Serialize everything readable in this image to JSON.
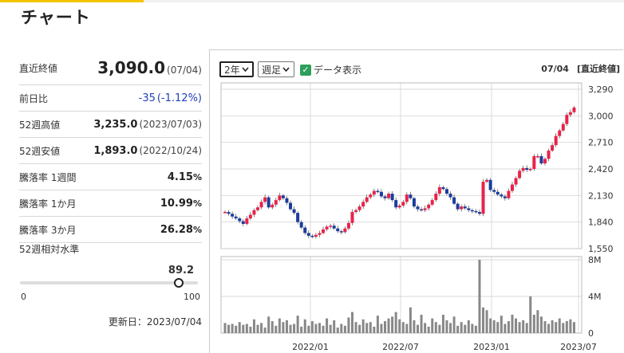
{
  "page": {
    "title": "チャート"
  },
  "summary": {
    "close_label": "直近終値",
    "close_value": "3,090.0",
    "close_date": "(07/04)",
    "prev_label": "前日比",
    "prev_value": "-35",
    "prev_pct": "(-1.12%)",
    "high52_label": "52週高値",
    "high52_value": "3,235.0",
    "high52_date": "(2023/07/03)",
    "low52_label": "52週安値",
    "low52_value": "1,893.0",
    "low52_date": "(2022/10/24)",
    "w1_label": "騰落率 1週間",
    "w1_value": "4.15",
    "m1_label": "騰落率 1か月",
    "m1_value": "10.99",
    "m3_label": "騰落率 3か月",
    "m3_value": "26.28",
    "pct_unit": "%"
  },
  "relative": {
    "label": "52週相対水準",
    "value": "89.2",
    "level": 0.892,
    "min": "0",
    "max": "100"
  },
  "updated": "更新日：2023/07/04",
  "controls": {
    "period_selected": "2年",
    "interval_selected": "週足",
    "data_display_label": "データ表示",
    "data_display_checked": true,
    "chevron": "chevron-down-icon",
    "check": "check-icon"
  },
  "chart_header": {
    "date": "07/04",
    "label": "[直近終値]"
  },
  "chart_data": {
    "type": "candlestick",
    "price_ticks": [
      "3,290",
      "3,000",
      "2,710",
      "2,420",
      "2,130",
      "1,840",
      "1,550"
    ],
    "price_tick_values": [
      3290,
      3000,
      2710,
      2420,
      2130,
      1840,
      1550
    ],
    "volume_ticks": [
      "8M",
      "4M",
      "0"
    ],
    "volume_tick_values": [
      8,
      4,
      0
    ],
    "x_labels": [
      "2022/01",
      "2022/07",
      "2023/01",
      "2023/07"
    ],
    "ylim": [
      1550,
      3290
    ],
    "volume_ylim": [
      0,
      8
    ],
    "volume_unit": "M",
    "colors": {
      "up": "#e8234a",
      "down": "#1c3c9c",
      "volume": "#888888",
      "grid": "#cccccc"
    }
  }
}
